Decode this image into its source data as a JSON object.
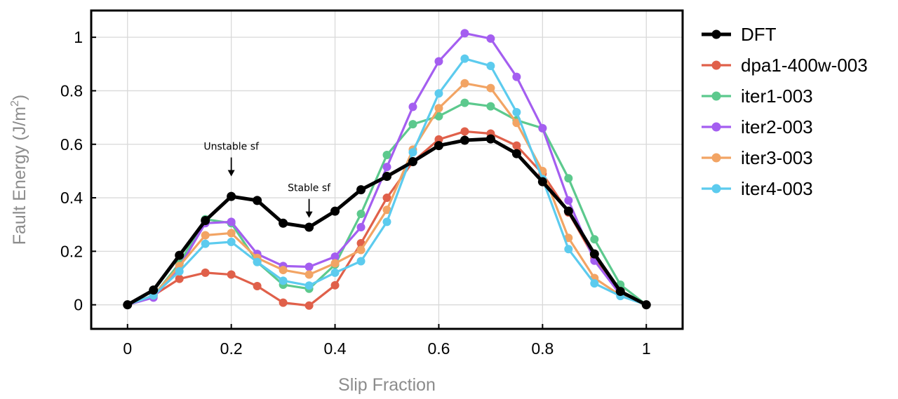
{
  "chart_data": {
    "type": "line",
    "xlabel": "Slip Fraction",
    "ylabel": "Fault Energy (J/m",
    "ylabel_sup": "2",
    "ylabel_close": ")",
    "xlim": [
      -0.07,
      1.07
    ],
    "ylim": [
      -0.09,
      1.1
    ],
    "xticks": [
      0,
      0.2,
      0.4,
      0.6,
      0.8,
      1
    ],
    "xtick_labels": [
      "0",
      "0.2",
      "0.4",
      "0.6",
      "0.8",
      "1"
    ],
    "yticks": [
      0,
      0.2,
      0.4,
      0.6,
      0.8,
      1
    ],
    "ytick_labels": [
      "0",
      "0.2",
      "0.4",
      "0.6",
      "0.8",
      "1"
    ],
    "grid": true,
    "legend_position": "right",
    "x": [
      0,
      0.05,
      0.1,
      0.15,
      0.2,
      0.25,
      0.3,
      0.35,
      0.4,
      0.45,
      0.5,
      0.55,
      0.6,
      0.65,
      0.7,
      0.75,
      0.8,
      0.85,
      0.9,
      0.95,
      1
    ],
    "series": [
      {
        "name": "DFT",
        "color": "#000000",
        "width": 5,
        "values": [
          0,
          0.055,
          0.185,
          0.315,
          0.405,
          0.39,
          0.305,
          0.29,
          0.35,
          0.43,
          0.48,
          0.535,
          0.595,
          0.615,
          0.62,
          0.565,
          0.46,
          0.35,
          0.19,
          0.05,
          0
        ]
      },
      {
        "name": "dpa1-400w-003",
        "color": "#e0604a",
        "width": 3.2,
        "values": [
          0,
          0.035,
          0.097,
          0.12,
          0.113,
          0.07,
          0.008,
          -0.003,
          0.073,
          0.23,
          0.4,
          0.535,
          0.618,
          0.648,
          0.64,
          0.595,
          0.49,
          0.345,
          0.175,
          0.04,
          0
        ]
      },
      {
        "name": "iter1-003",
        "color": "#5cc98d",
        "width": 3.2,
        "values": [
          0,
          0.033,
          0.155,
          0.32,
          0.305,
          0.16,
          0.075,
          0.06,
          0.15,
          0.34,
          0.56,
          0.675,
          0.705,
          0.755,
          0.742,
          0.69,
          0.66,
          0.473,
          0.245,
          0.075,
          0
        ]
      },
      {
        "name": "iter2-003",
        "color": "#a45ef0",
        "width": 3.2,
        "values": [
          0,
          0.027,
          0.14,
          0.305,
          0.31,
          0.19,
          0.145,
          0.142,
          0.18,
          0.29,
          0.515,
          0.74,
          0.91,
          1.015,
          0.995,
          0.852,
          0.66,
          0.39,
          0.165,
          0.038,
          0
        ]
      },
      {
        "name": "iter3-003",
        "color": "#f2a464",
        "width": 3.2,
        "values": [
          0,
          0.035,
          0.145,
          0.26,
          0.268,
          0.175,
          0.13,
          0.113,
          0.155,
          0.205,
          0.355,
          0.58,
          0.735,
          0.828,
          0.81,
          0.68,
          0.5,
          0.25,
          0.1,
          0.035,
          0
        ]
      },
      {
        "name": "iter4-003",
        "color": "#5ccbee",
        "width": 3.2,
        "values": [
          0,
          0.035,
          0.125,
          0.228,
          0.235,
          0.16,
          0.09,
          0.072,
          0.12,
          0.163,
          0.31,
          0.57,
          0.79,
          0.92,
          0.893,
          0.72,
          0.47,
          0.208,
          0.08,
          0.033,
          0
        ]
      }
    ],
    "annotations": [
      {
        "text": "Unstable sf",
        "x": 0.2,
        "arrow_to_y": 0.48
      },
      {
        "text": "Stable sf",
        "x": 0.35,
        "arrow_to_y": 0.325
      }
    ]
  }
}
